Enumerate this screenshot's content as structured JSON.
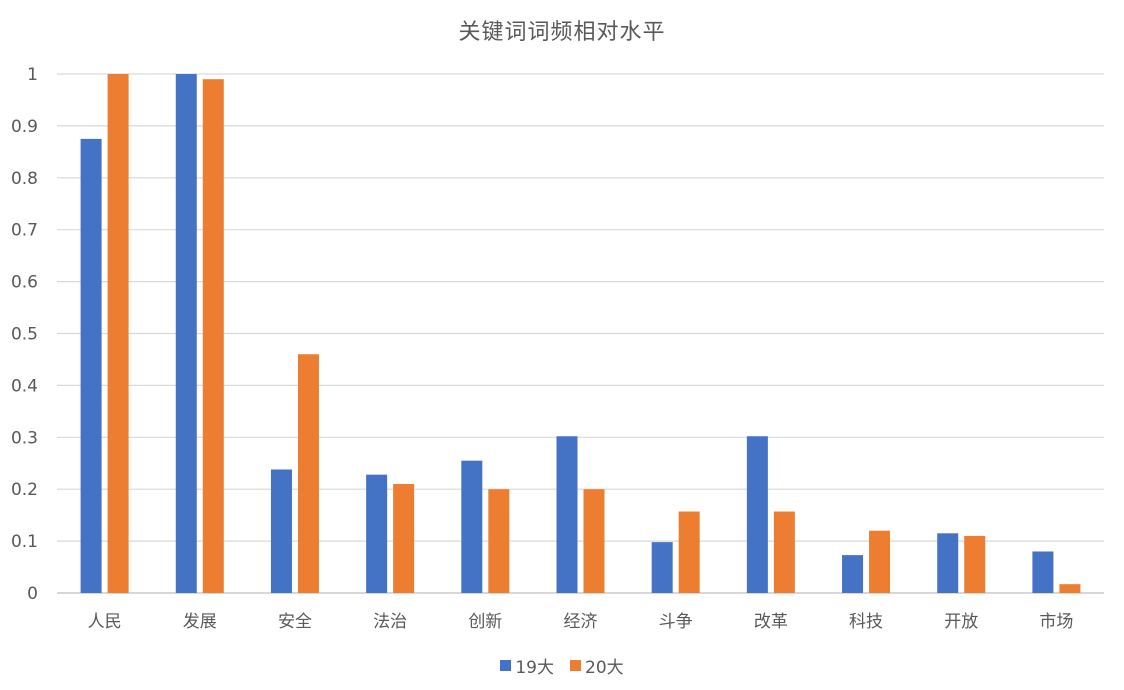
{
  "chart_data": {
    "type": "bar",
    "title": "关键词词频相对水平",
    "categories": [
      "人民",
      "发展",
      "安全",
      "法治",
      "创新",
      "经济",
      "斗争",
      "改革",
      "科技",
      "开放",
      "市场"
    ],
    "series": [
      {
        "name": "19大",
        "color": "#4472C4",
        "values": [
          0.875,
          1.0,
          0.238,
          0.228,
          0.255,
          0.302,
          0.098,
          0.302,
          0.073,
          0.115,
          0.08
        ]
      },
      {
        "name": "20大",
        "color": "#ED7D31",
        "values": [
          1.0,
          0.99,
          0.46,
          0.21,
          0.2,
          0.2,
          0.157,
          0.157,
          0.12,
          0.11,
          0.017
        ]
      }
    ],
    "ylim": [
      0,
      1
    ],
    "yticks": [
      "0",
      "0.1",
      "0.2",
      "0.3",
      "0.4",
      "0.5",
      "0.6",
      "0.7",
      "0.8",
      "0.9",
      "1"
    ],
    "xlabel": "",
    "ylabel": "",
    "grid": true,
    "legend_position": "bottom"
  }
}
